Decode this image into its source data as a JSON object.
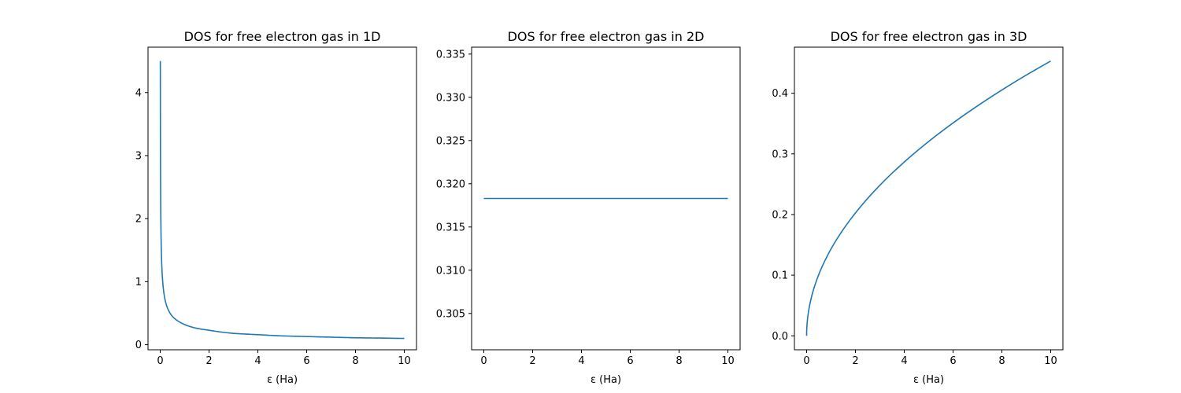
{
  "chart_data": [
    {
      "type": "line",
      "title": "DOS for free electron gas in 1D",
      "xlabel": "ε (Ha)",
      "ylabel": "",
      "xlim": [
        -0.5,
        10.5
      ],
      "ylim": [
        -0.08,
        4.72
      ],
      "xticks": [
        0,
        2,
        4,
        6,
        8,
        10
      ],
      "yticks": [
        0,
        1,
        2,
        3,
        4
      ],
      "xtick_labels": [
        "0",
        "2",
        "4",
        "6",
        "8",
        "10"
      ],
      "ytick_labels": [
        "0",
        "1",
        "2",
        "3",
        "4"
      ],
      "grid": false,
      "series": [
        {
          "color": "#1f77b4",
          "x": [
            0.005,
            0.01,
            0.02,
            0.05,
            0.1,
            0.2,
            0.3,
            0.5,
            0.75,
            1,
            1.5,
            2,
            3,
            4,
            5,
            6,
            7,
            8,
            9,
            10
          ],
          "y": [
            4.5,
            3.18,
            2.25,
            1.42,
            1.01,
            0.71,
            0.58,
            0.45,
            0.37,
            0.32,
            0.26,
            0.23,
            0.18,
            0.16,
            0.14,
            0.13,
            0.12,
            0.11,
            0.106,
            0.1
          ]
        }
      ]
    },
    {
      "type": "line",
      "title": "DOS for free electron gas in 2D",
      "xlabel": "ε (Ha)",
      "ylabel": "",
      "xlim": [
        -0.5,
        10.5
      ],
      "ylim": [
        0.3008,
        0.3358
      ],
      "xticks": [
        0,
        2,
        4,
        6,
        8,
        10
      ],
      "yticks": [
        0.305,
        0.31,
        0.315,
        0.32,
        0.325,
        0.33,
        0.335
      ],
      "xtick_labels": [
        "0",
        "2",
        "4",
        "6",
        "8",
        "10"
      ],
      "ytick_labels": [
        "0.305",
        "0.310",
        "0.315",
        "0.320",
        "0.325",
        "0.330",
        "0.335"
      ],
      "grid": false,
      "series": [
        {
          "color": "#1f77b4",
          "x": [
            0,
            10
          ],
          "y": [
            0.3183,
            0.3183
          ]
        }
      ]
    },
    {
      "type": "line",
      "title": "DOS for free electron gas in 3D",
      "xlabel": "ε (Ha)",
      "ylabel": "",
      "xlim": [
        -0.5,
        10.5
      ],
      "ylim": [
        -0.023,
        0.476
      ],
      "xticks": [
        0,
        2,
        4,
        6,
        8,
        10
      ],
      "yticks": [
        0.0,
        0.1,
        0.2,
        0.3,
        0.4
      ],
      "xtick_labels": [
        "0",
        "2",
        "4",
        "6",
        "8",
        "10"
      ],
      "ytick_labels": [
        "0.0",
        "0.1",
        "0.2",
        "0.3",
        "0.4"
      ],
      "grid": false,
      "series": [
        {
          "color": "#1f77b4",
          "x": [
            0,
            0.01,
            0.05,
            0.1,
            0.2,
            0.4,
            0.6,
            0.8,
            1,
            1.5,
            2,
            3,
            4,
            5,
            6,
            7,
            8,
            9,
            10
          ],
          "y": [
            0.0,
            0.0143,
            0.032,
            0.0453,
            0.064,
            0.0906,
            0.111,
            0.128,
            0.1433,
            0.1755,
            0.2026,
            0.2482,
            0.2866,
            0.3204,
            0.351,
            0.3791,
            0.4053,
            0.4299,
            0.4531
          ]
        }
      ]
    }
  ]
}
